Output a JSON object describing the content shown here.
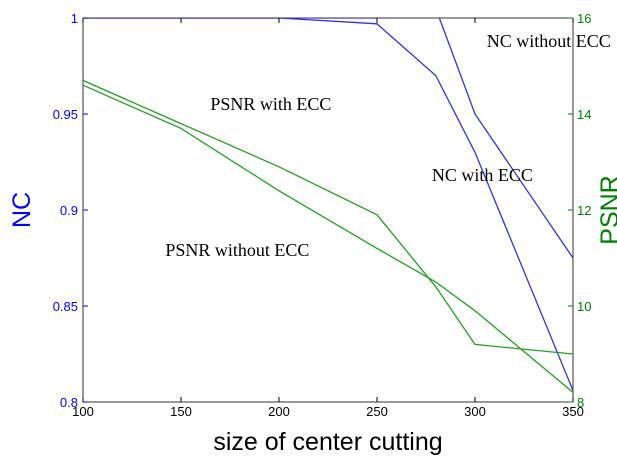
{
  "chart_data": {
    "type": "line",
    "xlabel": "size of center cutting",
    "ylabel_left": "NC",
    "ylabel_right": "PSNR",
    "xlim": [
      100,
      350
    ],
    "ylim_left": [
      0.8,
      1.0
    ],
    "ylim_right": [
      8,
      16
    ],
    "x_ticks": [
      100,
      150,
      200,
      250,
      300,
      350
    ],
    "y_ticks_left": [
      0.8,
      0.85,
      0.9,
      0.95,
      1.0
    ],
    "y_ticks_left_labels": [
      "0.8",
      "0.85",
      "0.9",
      "0.95",
      "1"
    ],
    "y_ticks_right": [
      8,
      10,
      12,
      14,
      16
    ],
    "grid": false,
    "colors": {
      "left_axis": "#0000ff",
      "right_axis": "#008000",
      "nc": "#3333dd",
      "psnr": "#22a022"
    },
    "series": [
      {
        "axis": "left",
        "color": "nc",
        "x": [
          100,
          150,
          200,
          250,
          280,
          300,
          350
        ],
        "y": [
          1.0,
          1.0,
          1.0,
          0.997,
          0.97,
          0.93,
          0.806
        ]
      },
      {
        "axis": "left",
        "color": "nc",
        "x": [
          100,
          150,
          200,
          250,
          280,
          300,
          350
        ],
        "y": [
          1.0,
          1.0,
          1.0,
          1.0,
          1.005,
          0.95,
          0.875
        ]
      },
      {
        "axis": "right",
        "color": "psnr",
        "x": [
          100,
          150,
          200,
          250,
          280,
          300,
          350
        ],
        "y": [
          14.7,
          13.8,
          12.9,
          11.9,
          10.4,
          9.2,
          9.0
        ]
      },
      {
        "axis": "right",
        "color": "psnr",
        "x": [
          100,
          150,
          200,
          250,
          280,
          300,
          350
        ],
        "y": [
          14.6,
          13.7,
          12.4,
          11.2,
          10.5,
          9.9,
          8.2
        ]
      }
    ],
    "annotations": [
      {
        "text": "NC without ECC",
        "x": 306,
        "y": 0.985
      },
      {
        "text": "PSNR with ECC",
        "x": 165,
        "y": 0.952
      },
      {
        "text": "NC with ECC",
        "x": 278,
        "y": 0.915
      },
      {
        "text": "PSNR without ECC",
        "x": 142,
        "y": 0.876
      }
    ]
  }
}
